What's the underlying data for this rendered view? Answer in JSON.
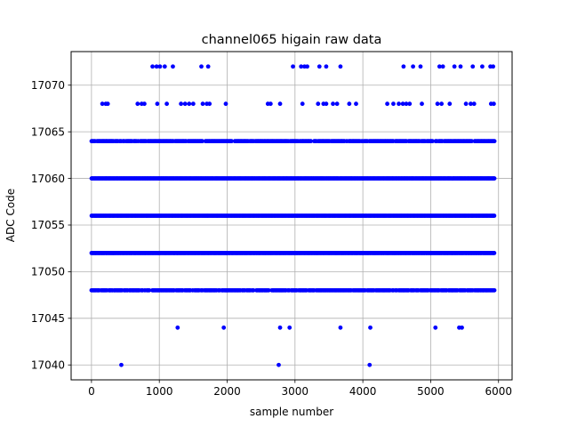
{
  "chart_data": {
    "type": "scatter",
    "title": "channel065 higain raw data",
    "xlabel": "sample number",
    "ylabel": "ADC Code",
    "xlim": [
      -300,
      6200
    ],
    "ylim": [
      17038.4,
      17073.6
    ],
    "xticks": [
      0,
      1000,
      2000,
      3000,
      4000,
      5000,
      6000
    ],
    "yticks": [
      17040,
      17045,
      17050,
      17055,
      17060,
      17065,
      17070
    ],
    "grid": true,
    "marker_color": "#0000ff",
    "series": [
      {
        "values_note": "sample count approx 5950, ADC codes quantized in steps of 4",
        "levels": [
          {
            "y": 17056,
            "x_range": [
              0,
              5940
            ],
            "density": "continuous"
          },
          {
            "y": 17060,
            "x_range": [
              0,
              5940
            ],
            "density": "continuous"
          },
          {
            "y": 17052,
            "x_range": [
              0,
              5940
            ],
            "density": "continuous"
          },
          {
            "y": 17064,
            "x_range": [
              0,
              5940
            ],
            "density": "dense"
          },
          {
            "y": 17048,
            "x_range": [
              0,
              5940
            ],
            "density": "dense"
          }
        ],
        "outliers": [
          {
            "x": 440,
            "y": 17040
          },
          {
            "x": 2760,
            "y": 17040
          },
          {
            "x": 4100,
            "y": 17040
          },
          {
            "x": 1270,
            "y": 17044
          },
          {
            "x": 1950,
            "y": 17044
          },
          {
            "x": 2780,
            "y": 17044
          },
          {
            "x": 2920,
            "y": 17044
          },
          {
            "x": 3670,
            "y": 17044
          },
          {
            "x": 4110,
            "y": 17044
          },
          {
            "x": 5070,
            "y": 17044
          },
          {
            "x": 5420,
            "y": 17044
          },
          {
            "x": 5460,
            "y": 17044
          },
          {
            "x": 160,
            "y": 17068
          },
          {
            "x": 210,
            "y": 17068
          },
          {
            "x": 240,
            "y": 17068
          },
          {
            "x": 680,
            "y": 17068
          },
          {
            "x": 740,
            "y": 17068
          },
          {
            "x": 780,
            "y": 17068
          },
          {
            "x": 970,
            "y": 17068
          },
          {
            "x": 1110,
            "y": 17068
          },
          {
            "x": 1320,
            "y": 17068
          },
          {
            "x": 1380,
            "y": 17068
          },
          {
            "x": 1440,
            "y": 17068
          },
          {
            "x": 1500,
            "y": 17068
          },
          {
            "x": 1640,
            "y": 17068
          },
          {
            "x": 1700,
            "y": 17068
          },
          {
            "x": 1740,
            "y": 17068
          },
          {
            "x": 1980,
            "y": 17068
          },
          {
            "x": 2600,
            "y": 17068
          },
          {
            "x": 2640,
            "y": 17068
          },
          {
            "x": 2780,
            "y": 17068
          },
          {
            "x": 3110,
            "y": 17068
          },
          {
            "x": 3340,
            "y": 17068
          },
          {
            "x": 3420,
            "y": 17068
          },
          {
            "x": 3460,
            "y": 17068
          },
          {
            "x": 3560,
            "y": 17068
          },
          {
            "x": 3620,
            "y": 17068
          },
          {
            "x": 3800,
            "y": 17068
          },
          {
            "x": 3900,
            "y": 17068
          },
          {
            "x": 4360,
            "y": 17068
          },
          {
            "x": 4450,
            "y": 17068
          },
          {
            "x": 4530,
            "y": 17068
          },
          {
            "x": 4590,
            "y": 17068
          },
          {
            "x": 4640,
            "y": 17068
          },
          {
            "x": 4690,
            "y": 17068
          },
          {
            "x": 4870,
            "y": 17068
          },
          {
            "x": 5100,
            "y": 17068
          },
          {
            "x": 5160,
            "y": 17068
          },
          {
            "x": 5280,
            "y": 17068
          },
          {
            "x": 5520,
            "y": 17068
          },
          {
            "x": 5590,
            "y": 17068
          },
          {
            "x": 5640,
            "y": 17068
          },
          {
            "x": 5890,
            "y": 17068
          },
          {
            "x": 5930,
            "y": 17068
          },
          {
            "x": 900,
            "y": 17072
          },
          {
            "x": 960,
            "y": 17072
          },
          {
            "x": 1010,
            "y": 17072
          },
          {
            "x": 1080,
            "y": 17072
          },
          {
            "x": 1200,
            "y": 17072
          },
          {
            "x": 1620,
            "y": 17072
          },
          {
            "x": 1720,
            "y": 17072
          },
          {
            "x": 2970,
            "y": 17072
          },
          {
            "x": 3090,
            "y": 17072
          },
          {
            "x": 3140,
            "y": 17072
          },
          {
            "x": 3180,
            "y": 17072
          },
          {
            "x": 3360,
            "y": 17072
          },
          {
            "x": 3460,
            "y": 17072
          },
          {
            "x": 3670,
            "y": 17072
          },
          {
            "x": 4600,
            "y": 17072
          },
          {
            "x": 4740,
            "y": 17072
          },
          {
            "x": 4850,
            "y": 17072
          },
          {
            "x": 5130,
            "y": 17072
          },
          {
            "x": 5180,
            "y": 17072
          },
          {
            "x": 5350,
            "y": 17072
          },
          {
            "x": 5440,
            "y": 17072
          },
          {
            "x": 5620,
            "y": 17072
          },
          {
            "x": 5760,
            "y": 17072
          },
          {
            "x": 5880,
            "y": 17072
          },
          {
            "x": 5920,
            "y": 17072
          }
        ]
      }
    ]
  }
}
